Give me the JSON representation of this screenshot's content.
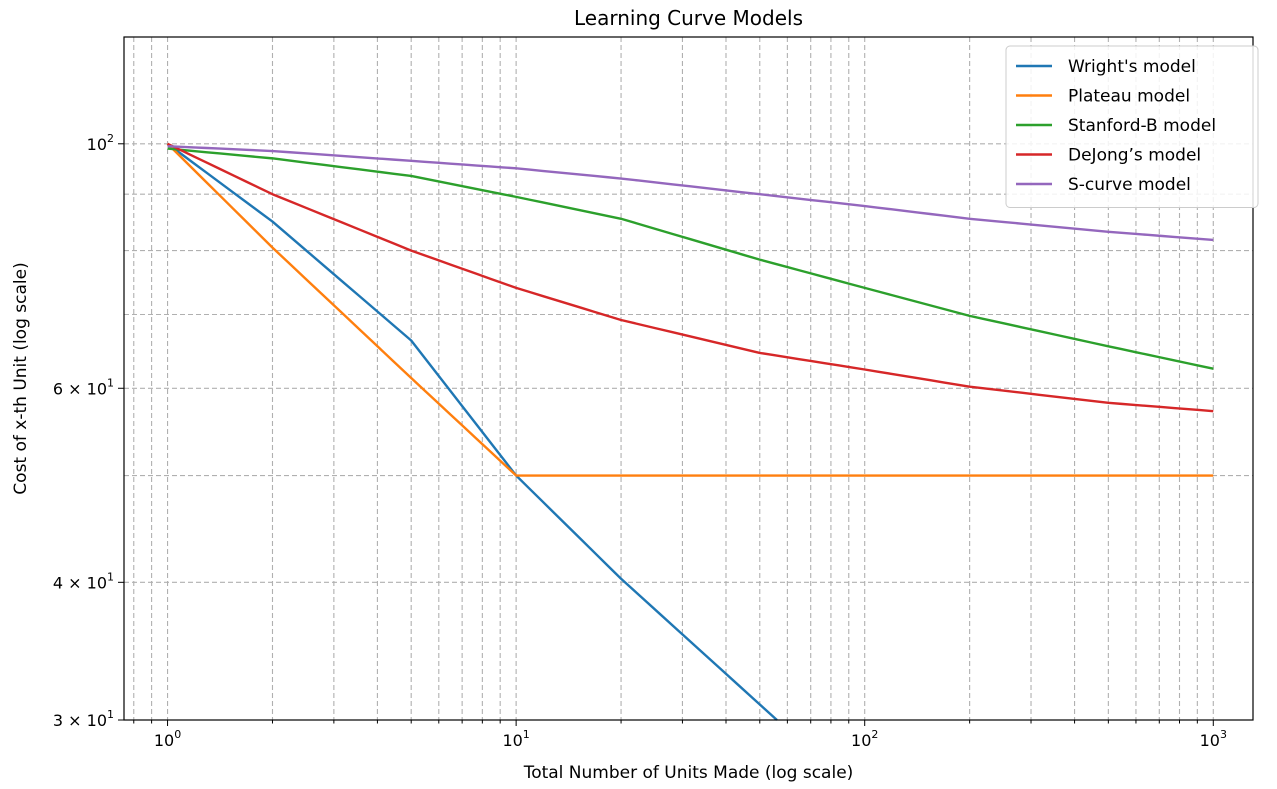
{
  "chart_data": {
    "type": "line",
    "title": "Learning Curve Models",
    "xlabel": "Total Number of Units Made (log scale)",
    "ylabel": "Cost of x-th Unit (log scale)",
    "xscale": "log",
    "yscale": "log",
    "xlim": [
      0.75,
      1300
    ],
    "ylim": [
      30,
      125
    ],
    "grid": "on (major and minor, dashed)",
    "legend_position": "top-right",
    "x_ticks": [
      {
        "value": 1,
        "base": "10",
        "exp": "0"
      },
      {
        "value": 10,
        "base": "10",
        "exp": "1"
      },
      {
        "value": 100,
        "base": "10",
        "exp": "2"
      },
      {
        "value": 1000,
        "base": "10",
        "exp": "3"
      }
    ],
    "y_ticks": [
      {
        "value": 100,
        "mant": "",
        "base": "10",
        "exp": "2"
      },
      {
        "value": 60,
        "mant": "6 × ",
        "base": "10",
        "exp": "1"
      },
      {
        "value": 40,
        "mant": "4 × ",
        "base": "10",
        "exp": "1"
      },
      {
        "value": 30,
        "mant": "3 × ",
        "base": "10",
        "exp": "1"
      }
    ],
    "x": [
      1,
      2,
      5,
      10,
      20,
      50,
      100,
      200,
      500,
      1000
    ],
    "series": [
      {
        "name": "Wright's model",
        "color": "#1f77b4",
        "x": [
          1,
          2,
          5,
          10,
          20,
          56
        ],
        "y": [
          100,
          85,
          66.3,
          50,
          40.3,
          30
        ]
      },
      {
        "name": "Plateau model",
        "color": "#ff7f0e",
        "x": [
          1,
          2,
          5,
          10,
          20,
          50,
          100,
          200,
          500,
          1000
        ],
        "y": [
          100,
          80.5,
          61.3,
          50,
          50,
          50,
          50,
          50,
          50,
          50
        ]
      },
      {
        "name": "Stanford-B model",
        "color": "#2ca02c",
        "x": [
          1,
          2,
          5,
          10,
          20,
          50,
          100,
          200,
          500,
          1000
        ],
        "y": [
          99,
          97,
          93.5,
          89.5,
          85.5,
          78.5,
          74,
          69.8,
          65.5,
          62.5
        ]
      },
      {
        "name": "DeJong’s model",
        "color": "#d62728",
        "x": [
          1,
          2,
          5,
          10,
          20,
          50,
          100,
          200,
          500,
          1000
        ],
        "y": [
          100,
          90,
          80,
          74,
          69.2,
          64.6,
          62.4,
          60.2,
          58.2,
          57.2
        ]
      },
      {
        "name": "S-curve model",
        "color": "#9467bd",
        "x": [
          1,
          2,
          5,
          10,
          20,
          50,
          100,
          200,
          500,
          1000
        ],
        "y": [
          99.5,
          98.5,
          96.5,
          95,
          93,
          90,
          87.8,
          85.5,
          83.2,
          81.8
        ]
      }
    ]
  }
}
